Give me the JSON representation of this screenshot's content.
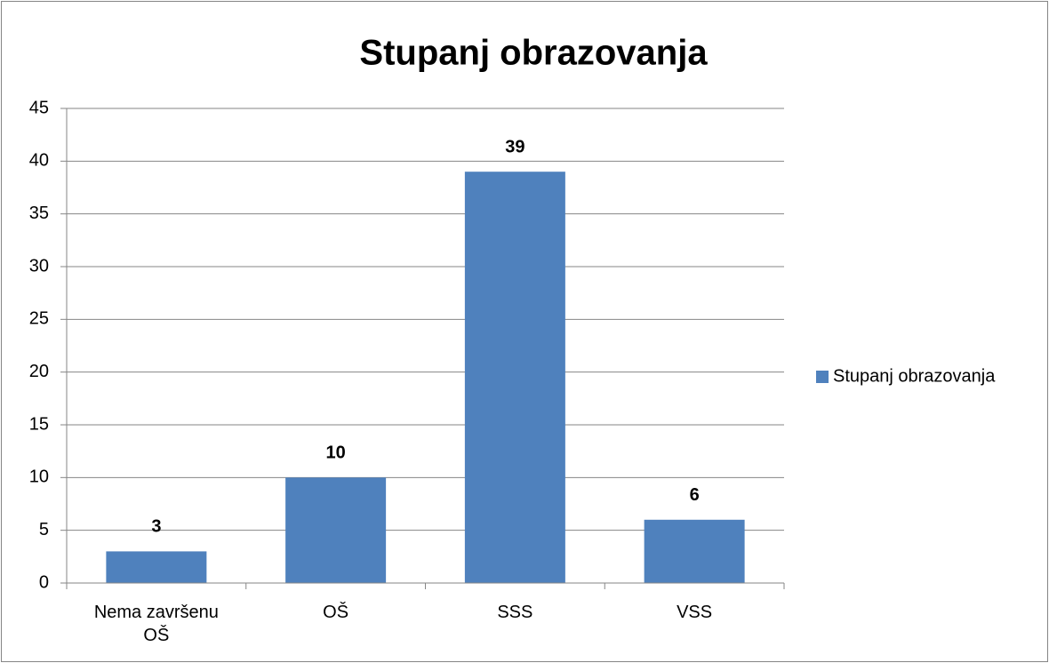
{
  "chart_data": {
    "type": "bar",
    "title": "Stupanj obrazovanja",
    "categories": [
      "Nema završenu OŠ",
      "OŠ",
      "SSS",
      "VSS"
    ],
    "series": [
      {
        "name": "Stupanj obrazovanja",
        "color": "#4f81bd",
        "values": [
          3,
          10,
          39,
          6
        ]
      }
    ],
    "ylim": [
      0,
      45
    ],
    "yticks": [
      0,
      5,
      10,
      15,
      20,
      25,
      30,
      35,
      40,
      45
    ],
    "grid": true,
    "legend": "right"
  }
}
